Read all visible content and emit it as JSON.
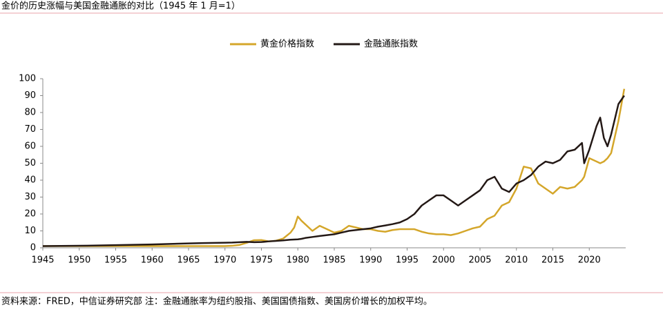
{
  "chart_data": {
    "type": "line",
    "title": "金价的历史涨幅与美国金融通胀的对比（1945 年 1 月=1）",
    "source": "资料来源：FRED，中信证券研究部 注：金融通胀率为纽约股指、美国国债指数、美国房价增长的加权平均。",
    "x": [
      1945,
      1950,
      1955,
      1960,
      1965,
      1967,
      1970,
      1971,
      1972,
      1973,
      1974,
      1975,
      1976,
      1977,
      1978,
      1979,
      1979.5,
      1980,
      1980.5,
      1981,
      1982,
      1983,
      1984,
      1985,
      1986,
      1987,
      1988,
      1989,
      1990,
      1991,
      1992,
      1993,
      1994,
      1995,
      1996,
      1997,
      1998,
      1999,
      2000,
      2001,
      2002,
      2003,
      2004,
      2005,
      2006,
      2007,
      2008,
      2009,
      2010,
      2011,
      2012,
      2013,
      2014,
      2015,
      2016,
      2017,
      2018,
      2019,
      2019.3,
      2020,
      2021,
      2021.5,
      2022,
      2022.5,
      2023,
      2024,
      2024.8
    ],
    "series": [
      {
        "name": "黄金价格指数",
        "color": "#d4a62a",
        "values": [
          1,
          1,
          1,
          1,
          1,
          1,
          1,
          1.2,
          1.7,
          3,
          4.5,
          4.6,
          3.8,
          4.2,
          5.5,
          9,
          12,
          18.5,
          16,
          14,
          10,
          13,
          11,
          9,
          10,
          13,
          12,
          11,
          11,
          10,
          9.5,
          10.5,
          11,
          11,
          11,
          9.5,
          8.5,
          8,
          8,
          7.5,
          8.5,
          10,
          11.5,
          12.5,
          17,
          19,
          25,
          27,
          35,
          48,
          47,
          38,
          35,
          32,
          36,
          35,
          36,
          40,
          42,
          53,
          51,
          50,
          51,
          53,
          56,
          75,
          94
        ]
      },
      {
        "name": "金融通胀指数",
        "color": "#231815",
        "values": [
          1,
          1.2,
          1.6,
          2,
          2.6,
          2.8,
          3,
          3.1,
          3.3,
          3.5,
          3.3,
          3.4,
          3.8,
          4.1,
          4.4,
          4.8,
          4.9,
          5,
          5.3,
          5.8,
          6.4,
          7,
          7.5,
          8,
          9,
          10,
          10.5,
          11,
          11.5,
          12.5,
          13.2,
          14,
          15,
          17,
          20,
          25,
          28,
          31,
          31,
          28,
          25,
          28,
          31,
          34,
          40,
          42,
          35,
          33,
          38,
          40,
          43,
          48,
          51,
          50,
          52,
          57,
          58,
          62,
          50,
          58,
          72,
          77,
          65,
          60,
          67,
          85,
          90
        ]
      }
    ],
    "xlim": [
      1945,
      2025
    ],
    "ylim": [
      0,
      100
    ],
    "xticks": [
      1945,
      1950,
      1955,
      1960,
      1965,
      1970,
      1975,
      1980,
      1985,
      1990,
      1995,
      2000,
      2005,
      2010,
      2015,
      2020
    ],
    "yticks": [
      0,
      10,
      20,
      30,
      40,
      50,
      60,
      70,
      80,
      90,
      100
    ]
  }
}
